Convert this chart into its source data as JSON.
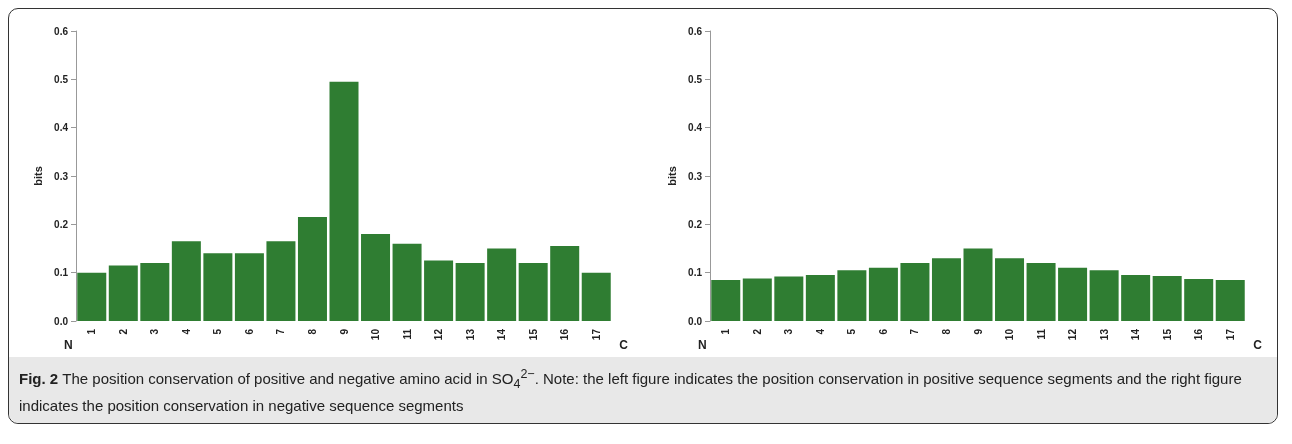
{
  "chart_data": [
    {
      "type": "bar",
      "ylabel": "bits",
      "categories": [
        "1",
        "2",
        "3",
        "4",
        "5",
        "6",
        "7",
        "8",
        "9",
        "10",
        "11",
        "12",
        "13",
        "14",
        "15",
        "16",
        "17"
      ],
      "values": [
        0.1,
        0.115,
        0.12,
        0.165,
        0.14,
        0.14,
        0.165,
        0.215,
        0.495,
        0.18,
        0.16,
        0.125,
        0.12,
        0.15,
        0.12,
        0.155,
        0.1
      ],
      "color": "#2f7d32",
      "ylim": [
        0,
        0.6
      ],
      "yticks": [
        {
          "value": 0,
          "label": "0.0"
        },
        0.1,
        0.2,
        0.3,
        0.4,
        0.5,
        0.6
      ],
      "grid": false,
      "annotations": [
        "N",
        "C",
        "Fig. 2",
        "The position conservation of positive and negative amino acid in SO$_{4}$$^{2−}$. Note: the left figure indicates the position conservation in positive sequence segments and the right figure indicates the position conservation in negative sequence segments"
      ]
    },
    {
      "type": "bar",
      "ylabel": "bits",
      "categories": [
        "1",
        "2",
        "3",
        "4",
        "5",
        "6",
        "7",
        "8",
        "9",
        "10",
        "11",
        "12",
        "13",
        "14",
        "15",
        "16",
        "17"
      ],
      "values": [
        0.085,
        0.088,
        0.092,
        0.095,
        0.105,
        0.11,
        0.12,
        0.13,
        0.15,
        0.13,
        0.12,
        0.11,
        0.105,
        0.095,
        0.093,
        0.087,
        0.085
      ],
      "color": "#2f7d32",
      "ylim": [
        0,
        0.6
      ],
      "yticks": [
        {
          "value": 0,
          "label": "0.0"
        },
        0.1,
        0.2,
        0.3,
        0.4,
        0.5,
        0.6
      ],
      "grid": false,
      "annotations": [
        "N",
        "C"
      ]
    }
  ]
}
